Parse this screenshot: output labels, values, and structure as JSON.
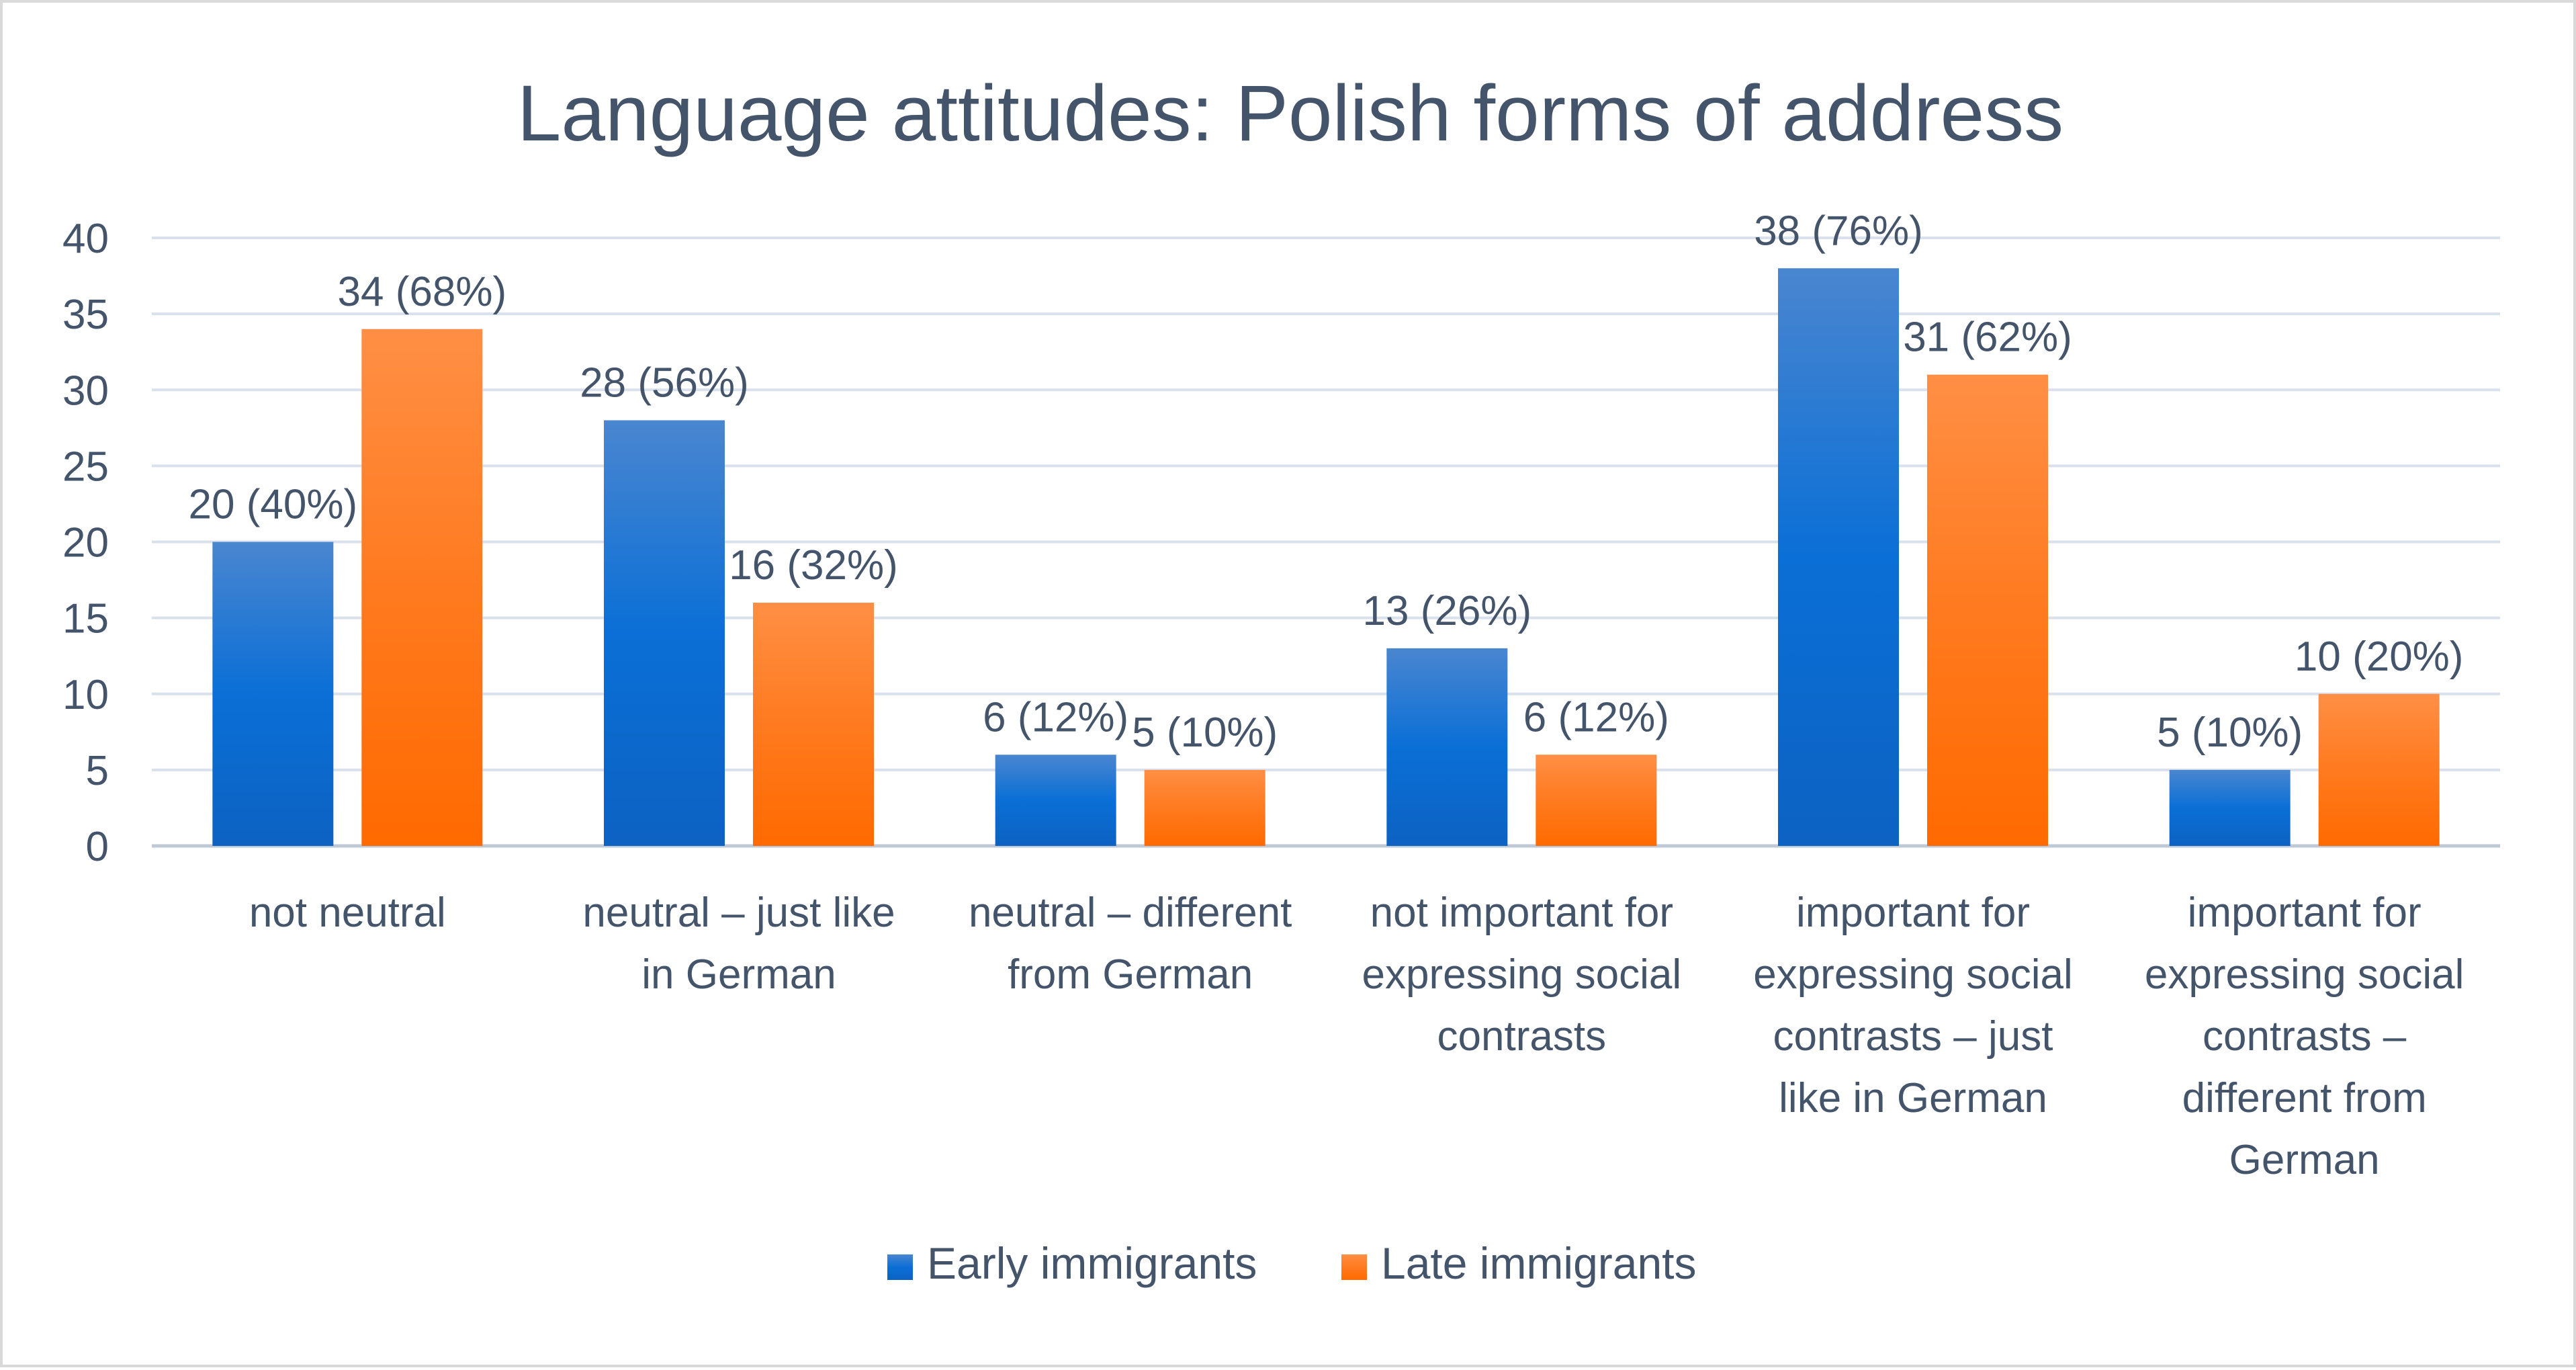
{
  "chart_data": {
    "type": "bar",
    "title": "Language attitudes: Polish forms of address",
    "xlabel": "",
    "ylabel": "",
    "ylim": [
      0,
      40
    ],
    "yticks": [
      0,
      5,
      10,
      15,
      20,
      25,
      30,
      35,
      40
    ],
    "grid": true,
    "legend_position": "bottom",
    "categories": [
      [
        "not neutral"
      ],
      [
        "neutral – just like",
        "in German"
      ],
      [
        "neutral – different",
        "from German"
      ],
      [
        "not important for",
        "expressing social",
        "contrasts"
      ],
      [
        "important for",
        "expressing social",
        "contrasts – just",
        "like in German"
      ],
      [
        "important for",
        "expressing social",
        "contrasts –",
        "different from",
        "German"
      ]
    ],
    "series": [
      {
        "name": "Early immigrants",
        "color": "#0a6fd6",
        "color_light": "#4a86d0",
        "values": [
          20,
          28,
          6,
          13,
          38,
          5
        ],
        "labels": [
          "20 (40%)",
          "28 (56%)",
          "6 (12%)",
          "13 (26%)",
          "38 (76%)",
          "5 (10%)"
        ]
      },
      {
        "name": "Late immigrants",
        "color": "#ff6a00",
        "color_light": "#ff8f45",
        "values": [
          34,
          16,
          5,
          6,
          31,
          10
        ],
        "labels": [
          "34 (68%)",
          "16 (32%)",
          "5 (10%)",
          "6 (12%)",
          "31 (62%)",
          "10 (20%)"
        ]
      }
    ]
  },
  "colors": {
    "text": "#44546a",
    "grid": "#d9e1ec",
    "axis": "#bfc9d6",
    "border": "#d9d9d9"
  }
}
